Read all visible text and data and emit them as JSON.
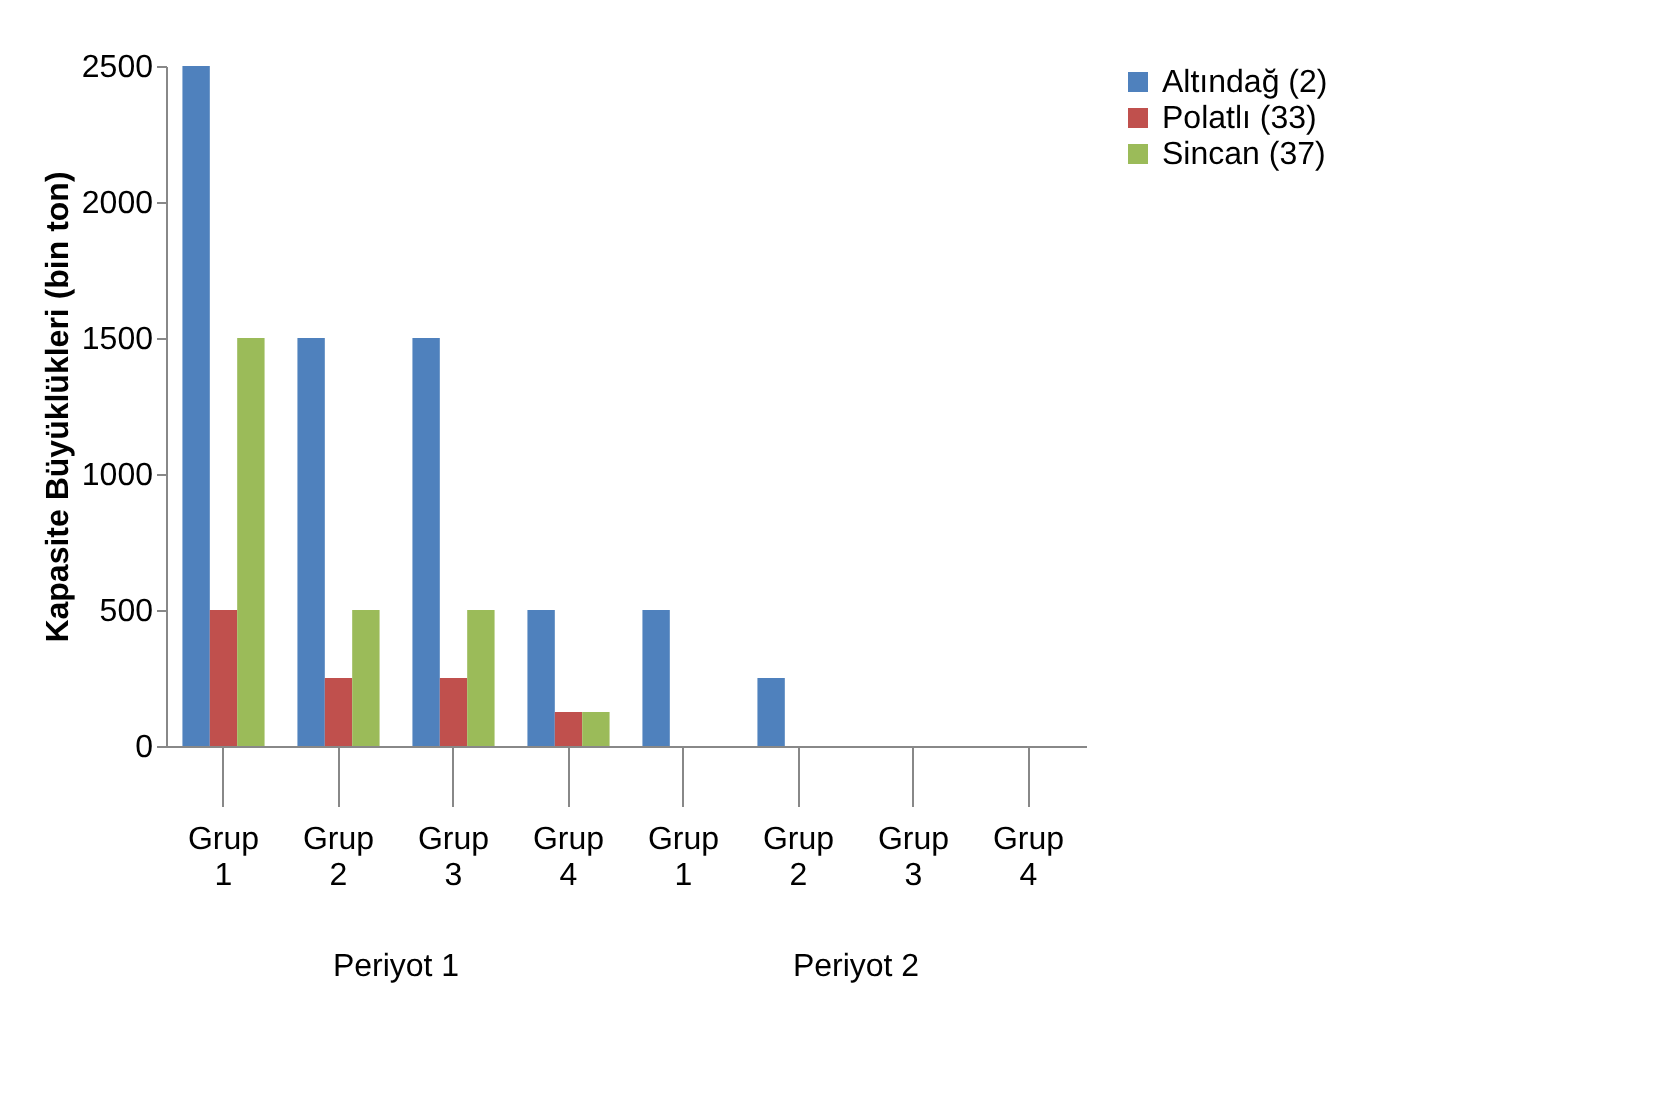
{
  "chart_data": {
    "type": "bar",
    "ylabel": "Kapasite Büyüklükleri (bin ton)",
    "categories": [
      "Grup 1",
      "Grup 2",
      "Grup 3",
      "Grup 4",
      "Grup 1",
      "Grup 2",
      "Grup 3",
      "Grup 4"
    ],
    "series": [
      {
        "name": "Altındağ (2)",
        "color": "#4f81bd",
        "values": [
          2500,
          1500,
          1500,
          500,
          500,
          250,
          null,
          null
        ]
      },
      {
        "name": "Polatlı (33)",
        "color": "#c0504d",
        "values": [
          500,
          250,
          250,
          125,
          null,
          null,
          null,
          null
        ]
      },
      {
        "name": "Sincan (37)",
        "color": "#9bbb59",
        "values": [
          1500,
          500,
          500,
          125,
          null,
          null,
          null,
          null
        ]
      }
    ],
    "annotations": [
      "Periyot 1",
      "Periyot 2"
    ],
    "ylim": [
      0,
      2500
    ],
    "yticks": [
      0,
      500,
      1000,
      1500,
      2000,
      2500
    ],
    "grid": false,
    "legend": "right"
  }
}
